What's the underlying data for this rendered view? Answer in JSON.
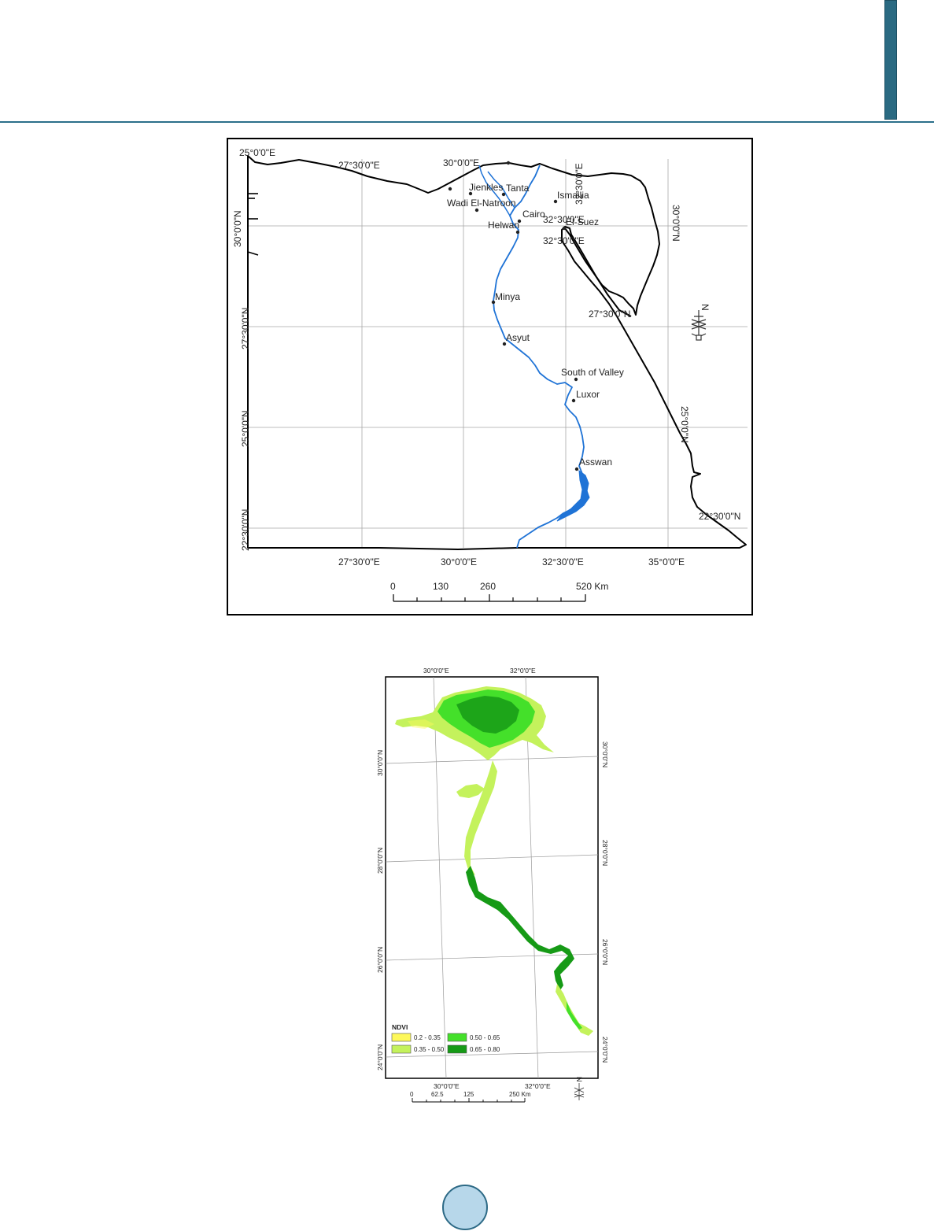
{
  "header": {
    "accent_color": "#2b6f8a"
  },
  "map_egypt": {
    "grid_labels": {
      "top": [
        {
          "id": "lon-25",
          "text": "25°0'0\"E"
        },
        {
          "id": "lon-27-5-top",
          "text": "27°30'0\"E"
        },
        {
          "id": "lon-30-top",
          "text": "30°0'0\"E"
        },
        {
          "id": "lon-32-5-top",
          "text": "32°30'0\"E"
        }
      ],
      "bottom": [
        {
          "id": "lon-27-5-bottom",
          "text": "27°30'0\"E"
        },
        {
          "id": "lon-30-bottom",
          "text": "30°0'0\"E"
        },
        {
          "id": "lon-32-5-bottom",
          "text": "32°30'0\"E"
        },
        {
          "id": "lon-35-bottom",
          "text": "35°0'0\"E"
        }
      ],
      "left": [
        {
          "id": "lat-30-left",
          "text": "30°0'0\"N"
        },
        {
          "id": "lat-27-5-left",
          "text": "27°30'0\"N"
        },
        {
          "id": "lat-25-left",
          "text": "25°0'0\"N"
        },
        {
          "id": "lat-22-5-left",
          "text": "22°30'0\"N"
        }
      ],
      "inner": [
        {
          "id": "lat-30-right",
          "text": "30°0'0\"N"
        },
        {
          "id": "lat-27-5-inner",
          "text": "27°30'0\"N"
        },
        {
          "id": "lat-25-right",
          "text": "25°0'0\"N"
        },
        {
          "id": "lat-22-5-right",
          "text": "22°30'0\"N"
        },
        {
          "id": "lon-32-5-inner-a",
          "text": "32°30'0\"E"
        },
        {
          "id": "lon-32-5-inner-b",
          "text": "32°30'0\"E"
        }
      ]
    },
    "cities": [
      {
        "id": "jienkles",
        "name": "Jienkles"
      },
      {
        "id": "tanta",
        "name": "Tanta"
      },
      {
        "id": "ismailia",
        "name": "Ismailia"
      },
      {
        "id": "wadi-el-natroon",
        "name": "Wadi El-Natroon"
      },
      {
        "id": "cairo",
        "name": "Cairo"
      },
      {
        "id": "el-suez",
        "name": "El-Suez"
      },
      {
        "id": "helwan",
        "name": "Helwan"
      },
      {
        "id": "minya",
        "name": "Minya"
      },
      {
        "id": "asyut",
        "name": "Asyut"
      },
      {
        "id": "south-of-valley",
        "name": "South of Valley"
      },
      {
        "id": "luxor",
        "name": "Luxor"
      },
      {
        "id": "asswan",
        "name": "Asswan"
      }
    ],
    "scale_bar": {
      "ticks": [
        "0",
        "130",
        "260",
        "520 Km"
      ]
    },
    "north_arrow": "N",
    "colors": {
      "nile": "#1f73d6",
      "border": "#000000",
      "grid": "#a8a8a8"
    }
  },
  "map_ndvi": {
    "grid_labels": {
      "top": [
        "30°0'0\"E",
        "32°0'0\"E"
      ],
      "bottom": [
        "30°0'0\"E",
        "32°0'0\"E"
      ],
      "left": [
        "30°0'0\"N",
        "28°0'0\"N",
        "26°0'0\"N",
        "24°0'0\"N"
      ],
      "right": [
        "30°0'0\"N",
        "28°0'0\"N",
        "26°0'0\"N",
        "24°0'0\"N"
      ]
    },
    "legend": {
      "title": "NDVI",
      "classes": [
        {
          "label": "0.2 - 0.35",
          "color": "#fdf85a"
        },
        {
          "label": "0.35 - 0.50",
          "color": "#c4f25c"
        },
        {
          "label": "0.50 - 0.65",
          "color": "#44e02a"
        },
        {
          "label": "0.65 - 0.80",
          "color": "#169a16"
        }
      ]
    },
    "scale_bar": {
      "ticks": [
        "0",
        "62.5",
        "125",
        "250 Km"
      ]
    },
    "north_arrow": "N"
  }
}
